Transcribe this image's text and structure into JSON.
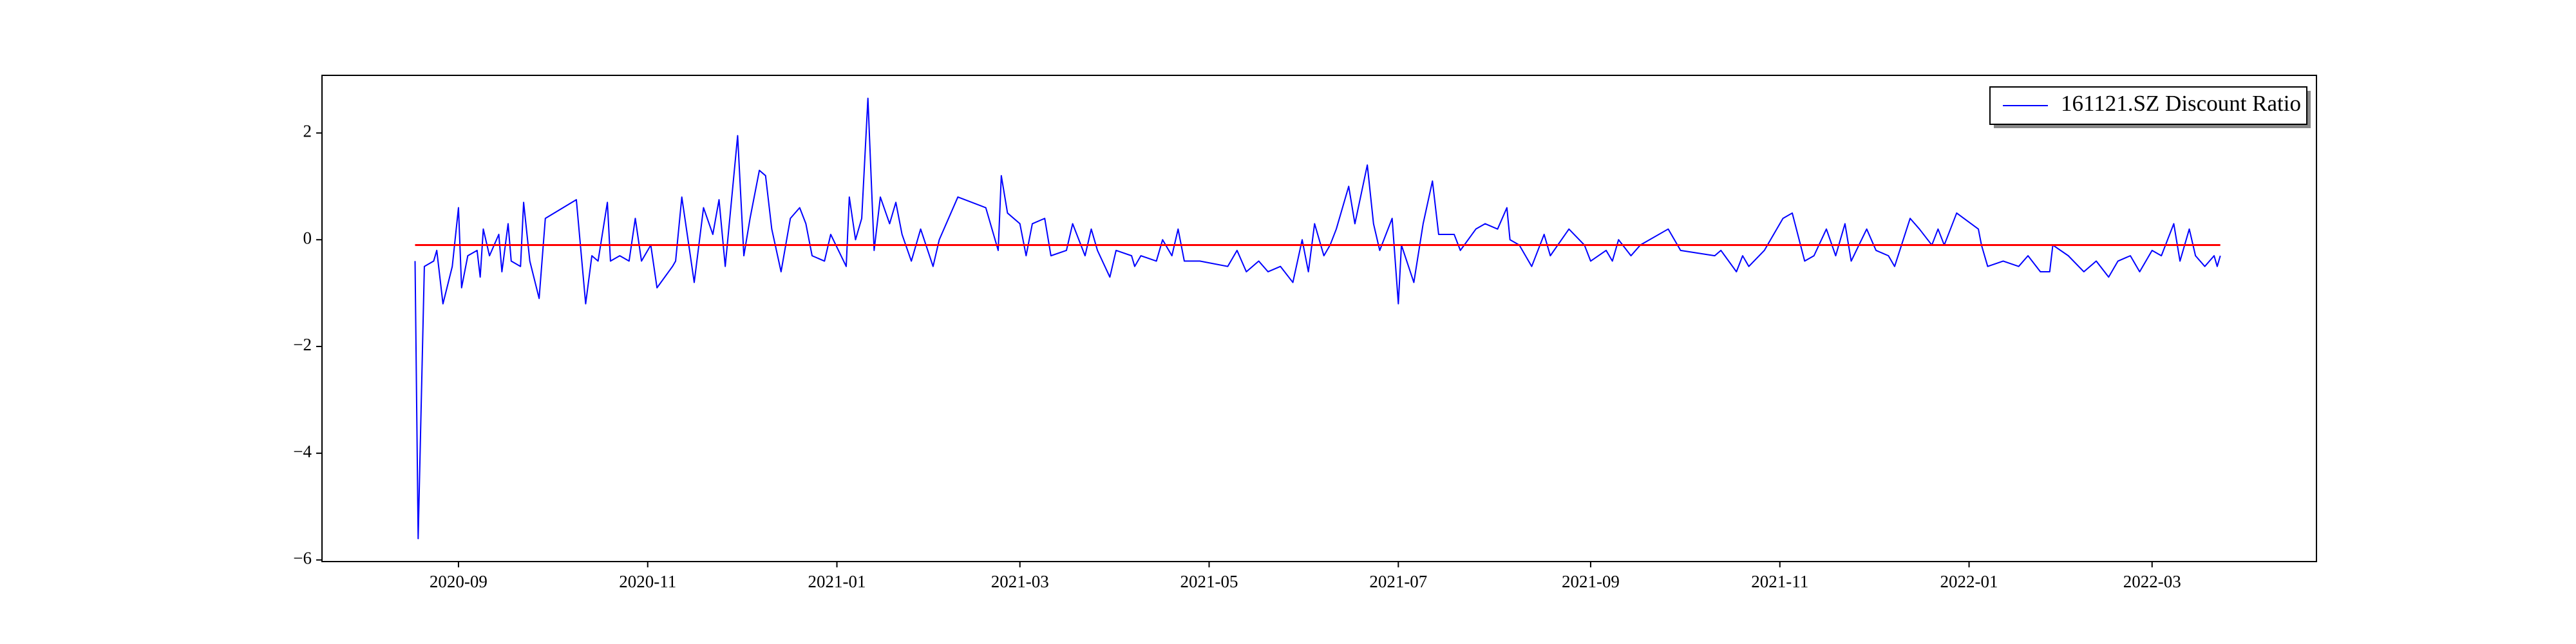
{
  "chart_data": {
    "type": "line",
    "x": [
      "2020-08-18",
      "2020-08-19",
      "2020-08-21",
      "2020-08-24",
      "2020-08-25",
      "2020-08-27",
      "2020-08-30",
      "2020-09-01",
      "2020-09-02",
      "2020-09-04",
      "2020-09-07",
      "2020-09-08",
      "2020-09-09",
      "2020-09-11",
      "2020-09-14",
      "2020-09-15",
      "2020-09-17",
      "2020-09-18",
      "2020-09-21",
      "2020-09-22",
      "2020-09-24",
      "2020-09-27",
      "2020-09-29",
      "2020-10-09",
      "2020-10-12",
      "2020-10-14",
      "2020-10-16",
      "2020-10-19",
      "2020-10-20",
      "2020-10-23",
      "2020-10-26",
      "2020-10-28",
      "2020-10-30",
      "2020-11-02",
      "2020-11-04",
      "2020-11-09",
      "2020-11-10",
      "2020-11-12",
      "2020-11-16",
      "2020-11-19",
      "2020-11-22",
      "2020-11-24",
      "2020-11-26",
      "2020-11-30",
      "2020-12-02",
      "2020-12-04",
      "2020-12-07",
      "2020-12-09",
      "2020-12-11",
      "2020-12-14",
      "2020-12-17",
      "2020-12-20",
      "2020-12-22",
      "2020-12-24",
      "2020-12-28",
      "2020-12-30",
      "2021-01-04",
      "2021-01-05",
      "2021-01-07",
      "2021-01-09",
      "2021-01-11",
      "2021-01-13",
      "2021-01-15",
      "2021-01-18",
      "2021-01-20",
      "2021-01-22",
      "2021-01-25",
      "2021-01-28",
      "2021-02-01",
      "2021-02-03",
      "2021-02-09",
      "2021-02-18",
      "2021-02-22",
      "2021-02-23",
      "2021-02-25",
      "2021-03-01",
      "2021-03-03",
      "2021-03-05",
      "2021-03-09",
      "2021-03-11",
      "2021-03-16",
      "2021-03-18",
      "2021-03-22",
      "2021-03-24",
      "2021-03-26",
      "2021-03-30",
      "2021-04-01",
      "2021-04-06",
      "2021-04-07",
      "2021-04-09",
      "2021-04-14",
      "2021-04-16",
      "2021-04-19",
      "2021-04-21",
      "2021-04-23",
      "2021-04-28",
      "2021-05-07",
      "2021-05-10",
      "2021-05-13",
      "2021-05-17",
      "2021-05-20",
      "2021-05-24",
      "2021-05-28",
      "2021-05-31",
      "2021-06-02",
      "2021-06-04",
      "2021-06-07",
      "2021-06-09",
      "2021-06-11",
      "2021-06-15",
      "2021-06-17",
      "2021-06-21",
      "2021-06-23",
      "2021-06-25",
      "2021-06-29",
      "2021-07-01",
      "2021-07-02",
      "2021-07-06",
      "2021-07-09",
      "2021-07-12",
      "2021-07-14",
      "2021-07-19",
      "2021-07-21",
      "2021-07-26",
      "2021-07-29",
      "2021-08-02",
      "2021-08-05",
      "2021-08-06",
      "2021-08-09",
      "2021-08-13",
      "2021-08-17",
      "2021-08-19",
      "2021-08-25",
      "2021-08-30",
      "2021-09-01",
      "2021-09-06",
      "2021-09-08",
      "2021-09-10",
      "2021-09-14",
      "2021-09-17",
      "2021-09-26",
      "2021-09-30",
      "2021-10-11",
      "2021-10-13",
      "2021-10-18",
      "2021-10-20",
      "2021-10-22",
      "2021-10-27",
      "2021-11-02",
      "2021-11-05",
      "2021-11-09",
      "2021-11-12",
      "2021-11-16",
      "2021-11-19",
      "2021-11-22",
      "2021-11-24",
      "2021-11-29",
      "2021-12-02",
      "2021-12-06",
      "2021-12-08",
      "2021-12-13",
      "2021-12-16",
      "2021-12-20",
      "2021-12-22",
      "2021-12-24",
      "2021-12-28",
      "2022-01-04",
      "2022-01-05",
      "2022-01-07",
      "2022-01-12",
      "2022-01-17",
      "2022-01-20",
      "2022-01-24",
      "2022-01-27",
      "2022-01-28",
      "2022-02-02",
      "2022-02-07",
      "2022-02-11",
      "2022-02-15",
      "2022-02-18",
      "2022-02-22",
      "2022-02-25",
      "2022-03-01",
      "2022-03-04",
      "2022-03-08",
      "2022-03-10",
      "2022-03-13",
      "2022-03-15",
      "2022-03-18",
      "2022-03-21",
      "2022-03-22",
      "2022-03-23"
    ],
    "series": [
      {
        "name": "161121.SZ Discount Ratio",
        "color": "#0000ff",
        "values": [
          -0.4,
          -5.6,
          -0.5,
          -0.4,
          -0.2,
          -1.2,
          -0.5,
          0.6,
          -0.9,
          -0.3,
          -0.2,
          -0.7,
          0.2,
          -0.3,
          0.1,
          -0.6,
          0.3,
          -0.4,
          -0.5,
          0.7,
          -0.4,
          -1.1,
          0.4,
          0.75,
          -1.2,
          -0.3,
          -0.4,
          0.7,
          -0.4,
          -0.3,
          -0.4,
          0.4,
          -0.4,
          -0.1,
          -0.9,
          -0.5,
          -0.4,
          0.8,
          -0.8,
          0.6,
          0.1,
          0.75,
          -0.5,
          1.95,
          -0.3,
          0.4,
          1.3,
          1.2,
          0.2,
          -0.6,
          0.4,
          0.6,
          0.3,
          -0.3,
          -0.4,
          0.1,
          -0.5,
          0.8,
          0,
          0.4,
          2.65,
          -0.2,
          0.8,
          0.3,
          0.7,
          0.1,
          -0.4,
          0.2,
          -0.5,
          0,
          0.8,
          0.6,
          -0.2,
          1.2,
          0.5,
          0.3,
          -0.3,
          0.3,
          0.4,
          -0.3,
          -0.2,
          0.3,
          -0.3,
          0.2,
          -0.2,
          -0.7,
          -0.2,
          -0.3,
          -0.5,
          -0.3,
          -0.4,
          0,
          -0.3,
          0.2,
          -0.4,
          -0.4,
          -0.5,
          -0.2,
          -0.6,
          -0.4,
          -0.6,
          -0.5,
          -0.8,
          0,
          -0.6,
          0.3,
          -0.3,
          -0.1,
          0.2,
          1.0,
          0.3,
          1.4,
          0.3,
          -0.2,
          0.4,
          -1.2,
          -0.1,
          -0.8,
          0.3,
          1.1,
          0.1,
          0.1,
          -0.2,
          0.2,
          0.3,
          0.2,
          0.6,
          0,
          -0.1,
          -0.5,
          0.1,
          -0.3,
          0.2,
          -0.1,
          -0.4,
          -0.2,
          -0.4,
          0,
          -0.3,
          -0.1,
          0.2,
          -0.2,
          -0.3,
          -0.2,
          -0.6,
          -0.3,
          -0.5,
          -0.2,
          0.4,
          0.5,
          -0.4,
          -0.3,
          0.2,
          -0.3,
          0.3,
          -0.4,
          0.2,
          -0.2,
          -0.3,
          -0.5,
          0.4,
          0.2,
          -0.1,
          0.2,
          -0.1,
          0.5,
          0.2,
          -0.1,
          -0.5,
          -0.4,
          -0.5,
          -0.3,
          -0.6,
          -0.6,
          -0.1,
          -0.3,
          -0.6,
          -0.4,
          -0.7,
          -0.4,
          -0.3,
          -0.6,
          -0.2,
          -0.3,
          0.3,
          -0.4,
          0.2,
          -0.3,
          -0.5,
          -0.3,
          -0.5,
          -0.3
        ]
      }
    ],
    "hline": {
      "value": -0.1,
      "color": "#ff0000"
    },
    "xlim": [
      "2020-07-19",
      "2022-04-23"
    ],
    "xticks": [
      "2020-09",
      "2020-11",
      "2021-01",
      "2021-03",
      "2021-05",
      "2021-07",
      "2021-09",
      "2021-11",
      "2022-01",
      "2022-03"
    ],
    "ylim": [
      -6.03,
      3.08
    ],
    "yticks": [
      {
        "value": -6,
        "label": "−6"
      },
      {
        "value": -4,
        "label": "−4"
      },
      {
        "value": -2,
        "label": "−2"
      },
      0,
      2
    ],
    "grid": false,
    "legend": "upper right"
  }
}
